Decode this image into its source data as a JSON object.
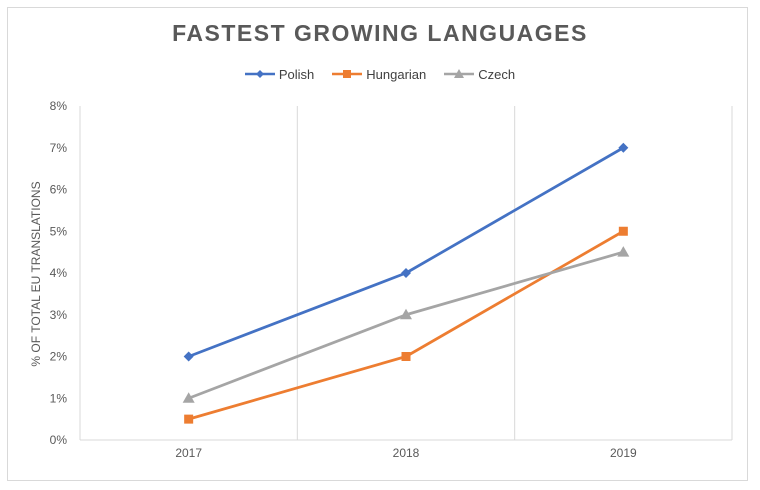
{
  "chart_data": {
    "type": "line",
    "title": "FASTEST GROWING LANGUAGES",
    "ylabel": "% OF TOTAL EU TRANSLATIONS",
    "xlabel": "",
    "categories": [
      "2017",
      "2018",
      "2019"
    ],
    "ylim": [
      0,
      8
    ],
    "yticks": [
      "0%",
      "1%",
      "2%",
      "3%",
      "4%",
      "5%",
      "6%",
      "7%",
      "8%"
    ],
    "legend_position": "top",
    "grid": "vertical",
    "series": [
      {
        "name": "Polish",
        "values": [
          2,
          4,
          7
        ],
        "color": "#4472C4",
        "marker": "diamond"
      },
      {
        "name": "Hungarian",
        "values": [
          0.5,
          2,
          5
        ],
        "color": "#ED7D31",
        "marker": "square"
      },
      {
        "name": "Czech",
        "values": [
          1,
          3,
          4.5
        ],
        "color": "#A5A5A5",
        "marker": "triangle"
      }
    ]
  }
}
